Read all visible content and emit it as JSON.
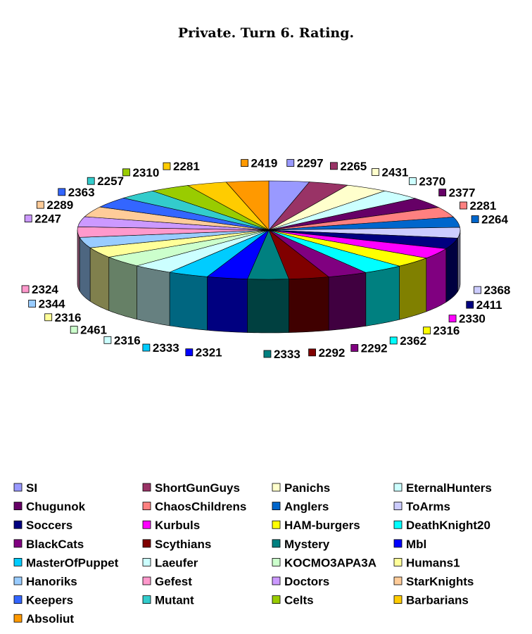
{
  "chart_data": {
    "type": "pie",
    "title": "Private. Turn 6. Rating.",
    "legend_placement": "bottom",
    "slices": [
      {
        "name": "SI",
        "value": 2297,
        "color": "#9999FF"
      },
      {
        "name": "ShortGunGuys",
        "value": 2265,
        "color": "#993366"
      },
      {
        "name": "Panichs",
        "value": 2431,
        "color": "#FFFFCC"
      },
      {
        "name": "EternalHunters",
        "value": 2370,
        "color": "#CCFFFF"
      },
      {
        "name": "Chugunok",
        "value": 2377,
        "color": "#660066"
      },
      {
        "name": "ChaosChildrens",
        "value": 2281,
        "color": "#FF8080"
      },
      {
        "name": "Anglers",
        "value": 2264,
        "color": "#0066CC"
      },
      {
        "name": "ToArms",
        "value": 2368,
        "color": "#CCCCFF"
      },
      {
        "name": "Soccers",
        "value": 2411,
        "color": "#000080"
      },
      {
        "name": "Kurbuls",
        "value": 2330,
        "color": "#FF00FF"
      },
      {
        "name": "HAM-burgers",
        "value": 2316,
        "color": "#FFFF00"
      },
      {
        "name": "DeathKnight20",
        "value": 2362,
        "color": "#00FFFF"
      },
      {
        "name": "BlackCats",
        "value": 2292,
        "color": "#800080"
      },
      {
        "name": "Scythians",
        "value": 2292,
        "color": "#800000"
      },
      {
        "name": "Mystery",
        "value": 2333,
        "color": "#008080"
      },
      {
        "name": "Mbl",
        "value": 2321,
        "color": "#0000FF"
      },
      {
        "name": "MasterOfPuppet",
        "value": 2333,
        "color": "#00CCFF"
      },
      {
        "name": "Laeufer",
        "value": 2316,
        "color": "#CCFFFF"
      },
      {
        "name": "KOCMO3APA3A",
        "value": 2461,
        "color": "#CCFFCC"
      },
      {
        "name": "Humans1",
        "value": 2316,
        "color": "#FFFF99"
      },
      {
        "name": "Hanoriks",
        "value": 2344,
        "color": "#99CCFF"
      },
      {
        "name": "Gefest",
        "value": 2324,
        "color": "#FF99CC"
      },
      {
        "name": "Doctors",
        "value": 2247,
        "color": "#CC99FF"
      },
      {
        "name": "StarKnights",
        "value": 2289,
        "color": "#FFCC99"
      },
      {
        "name": "Keepers",
        "value": 2363,
        "color": "#3366FF"
      },
      {
        "name": "Mutant",
        "value": 2257,
        "color": "#33CCCC"
      },
      {
        "name": "Celts",
        "value": 2310,
        "color": "#99CC00"
      },
      {
        "name": "Barbarians",
        "value": 2281,
        "color": "#FFCC00"
      },
      {
        "name": "Absoliut",
        "value": 2419,
        "color": "#FF9900"
      }
    ]
  }
}
